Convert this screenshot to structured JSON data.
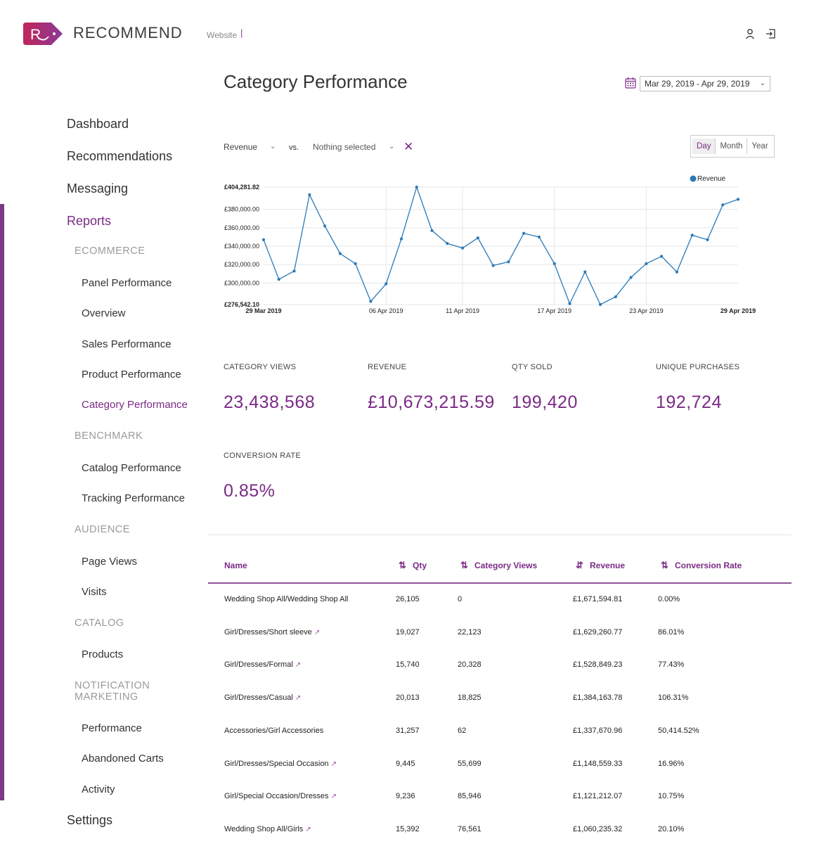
{
  "app": {
    "brand_initial": "R",
    "brand_name": "RECOMMEND",
    "website_label": "Website",
    "website_caret": "|",
    "accent_color": "#7b2a86",
    "icons": {
      "user": "user-icon",
      "logout": "logout-icon",
      "calendar": "calendar-icon"
    }
  },
  "sidebar": {
    "top_items": [
      {
        "label": "Dashboard"
      },
      {
        "label": "Recommendations"
      },
      {
        "label": "Messaging"
      },
      {
        "label": "Reports",
        "active": true
      }
    ],
    "sections": [
      {
        "title": "ECOMMERCE",
        "items": [
          "Panel Performance",
          "Overview",
          "Sales Performance",
          "Product Performance",
          "Category Performance"
        ]
      },
      {
        "title": "BENCHMARK",
        "items": [
          "Catalog Performance",
          "Tracking Performance"
        ]
      },
      {
        "title": "AUDIENCE",
        "items": [
          "Page Views",
          "Visits"
        ]
      },
      {
        "title": "CATALOG",
        "items": [
          "Products"
        ]
      },
      {
        "title_line1": "NOTIFICATION",
        "title_line2": "MARKETING",
        "items": [
          "Performance",
          "Abandoned Carts",
          "Activity"
        ]
      }
    ],
    "active_item": "Category Performance",
    "settings_label": "Settings"
  },
  "header": {
    "title": "Category Performance",
    "date_range": "Mar 29, 2019 - Apr 29, 2019"
  },
  "controls": {
    "metric": "Revenue",
    "vs_label": "vs.",
    "compare": "Nothing selected",
    "period_options": [
      "Day",
      "Month",
      "Year"
    ],
    "period_selected": "Day"
  },
  "chart_data": {
    "type": "line",
    "legend": [
      "Revenue"
    ],
    "legend_position": "top-right",
    "series_color": "#2a7ab8",
    "y_tick_labels": [
      "£404,281.82",
      "£380,000.00",
      "£360,000.00",
      "£340,000.00",
      "£320,000.00",
      "£300,000.00",
      "£276,542.10"
    ],
    "x_tick_labels": [
      "29 Mar 2019",
      "06 Apr 2019",
      "11 Apr 2019",
      "17 Apr 2019",
      "23 Apr 2019",
      "29 Apr 2019"
    ],
    "ylim": [
      276542.1,
      404281.82
    ],
    "x": [
      "29 Mar",
      "30 Mar",
      "31 Mar",
      "01 Apr",
      "02 Apr",
      "03 Apr",
      "04 Apr",
      "05 Apr",
      "06 Apr",
      "07 Apr",
      "08 Apr",
      "09 Apr",
      "10 Apr",
      "11 Apr",
      "12 Apr",
      "13 Apr",
      "14 Apr",
      "15 Apr",
      "16 Apr",
      "17 Apr",
      "18 Apr",
      "19 Apr",
      "20 Apr",
      "21 Apr",
      "22 Apr",
      "23 Apr",
      "24 Apr",
      "25 Apr",
      "26 Apr",
      "27 Apr",
      "28 Apr",
      "29 Apr"
    ],
    "values": [
      347000,
      304000,
      313000,
      396000,
      362000,
      332000,
      321000,
      280000,
      299000,
      348000,
      404281.82,
      357000,
      343000,
      338000,
      349000,
      319000,
      323000,
      354000,
      350000,
      321000,
      277500,
      312000,
      276542.1,
      285000,
      306000,
      321000,
      329000,
      312000,
      352000,
      347000,
      385000,
      391000
    ]
  },
  "kpis": [
    {
      "label": "CATEGORY VIEWS",
      "value": "23,438,568"
    },
    {
      "label": "REVENUE",
      "value": "£10,673,215.59"
    },
    {
      "label": "QTY SOLD",
      "value": "199,420"
    },
    {
      "label": "UNIQUE PURCHASES",
      "value": "192,724"
    },
    {
      "label": "CONVERSION RATE",
      "value": "0.85%"
    }
  ],
  "table": {
    "columns": [
      {
        "label": "Name",
        "sort_icon": ""
      },
      {
        "label": "Qty",
        "sort_icon": "⇅"
      },
      {
        "label": "Category Views",
        "sort_icon": "⇅"
      },
      {
        "label": "Revenue",
        "sort_icon": "⇵"
      },
      {
        "label": "Conversion Rate",
        "sort_icon": "⇅"
      }
    ],
    "rows": [
      {
        "name": "Wedding Shop All/Wedding Shop All",
        "link": false,
        "qty": "26,105",
        "views": "0",
        "revenue": "£1,671,594.81",
        "rate": "0.00%"
      },
      {
        "name": "Girl/Dresses/Short sleeve",
        "link": true,
        "qty": "19,027",
        "views": "22,123",
        "revenue": "£1,629,260.77",
        "rate": "86.01%"
      },
      {
        "name": "Girl/Dresses/Formal",
        "link": true,
        "qty": "15,740",
        "views": "20,328",
        "revenue": "£1,528,849.23",
        "rate": "77.43%"
      },
      {
        "name": "Girl/Dresses/Casual",
        "link": true,
        "qty": "20,013",
        "views": "18,825",
        "revenue": "£1,384,163.78",
        "rate": "106.31%"
      },
      {
        "name": "Accessories/Girl Accessories",
        "link": false,
        "qty": "31,257",
        "views": "62",
        "revenue": "£1,337,670.96",
        "rate": "50,414.52%"
      },
      {
        "name": "Girl/Dresses/Special Occasion",
        "link": true,
        "qty": "9,445",
        "views": "55,699",
        "revenue": "£1,148,559.33",
        "rate": "16.96%"
      },
      {
        "name": "Girl/Special Occasion/Dresses",
        "link": true,
        "qty": "9,236",
        "views": "85,946",
        "revenue": "£1,121,212.07",
        "rate": "10.75%"
      },
      {
        "name": "Wedding Shop All/Girls",
        "link": true,
        "qty": "15,392",
        "views": "76,561",
        "revenue": "£1,060,235.32",
        "rate": "20.10%"
      }
    ]
  }
}
